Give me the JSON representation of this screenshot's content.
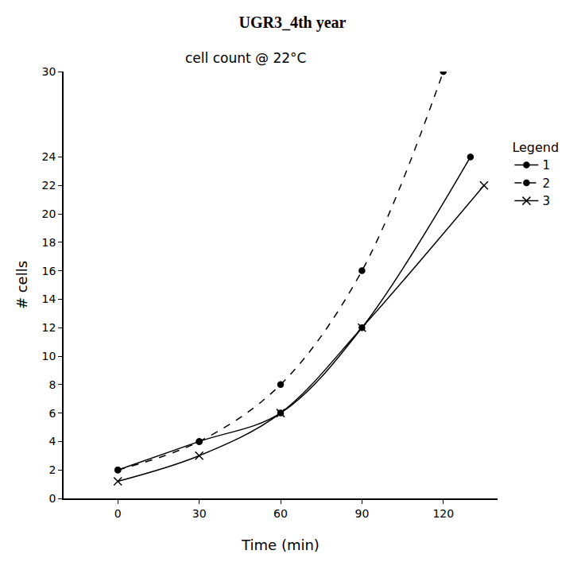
{
  "chart_data": {
    "type": "line",
    "title": "UGR3_4th year",
    "subtitle": "cell count @ 22°C",
    "x_label": "Time (min)",
    "y_label": "# cells",
    "legend_title": "Legend",
    "legend": "right",
    "grid": false,
    "xlim": [
      -20,
      140
    ],
    "xticks": [
      0,
      30,
      60,
      90,
      120
    ],
    "ylim": [
      0,
      30
    ],
    "yticks": [
      0,
      2,
      4,
      6,
      8,
      10,
      12,
      14,
      16,
      18,
      20,
      22,
      24,
      30
    ],
    "series": [
      {
        "name": "1",
        "color": "#000000",
        "marker": "circle",
        "line_style": "solid",
        "x": [
          0,
          30,
          60,
          90,
          130
        ],
        "values": [
          2,
          4,
          6,
          12,
          24
        ]
      },
      {
        "name": "2",
        "color": "#000000",
        "marker": "circle",
        "line_style": "dashed",
        "x": [
          0,
          30,
          60,
          90,
          120
        ],
        "values": [
          2,
          4,
          8,
          16,
          30
        ]
      },
      {
        "name": "3",
        "color": "#000000",
        "marker": "x",
        "line_style": "solid",
        "x": [
          0,
          30,
          60,
          90,
          135
        ],
        "values": [
          1.2,
          3,
          6,
          12,
          22
        ]
      }
    ]
  }
}
